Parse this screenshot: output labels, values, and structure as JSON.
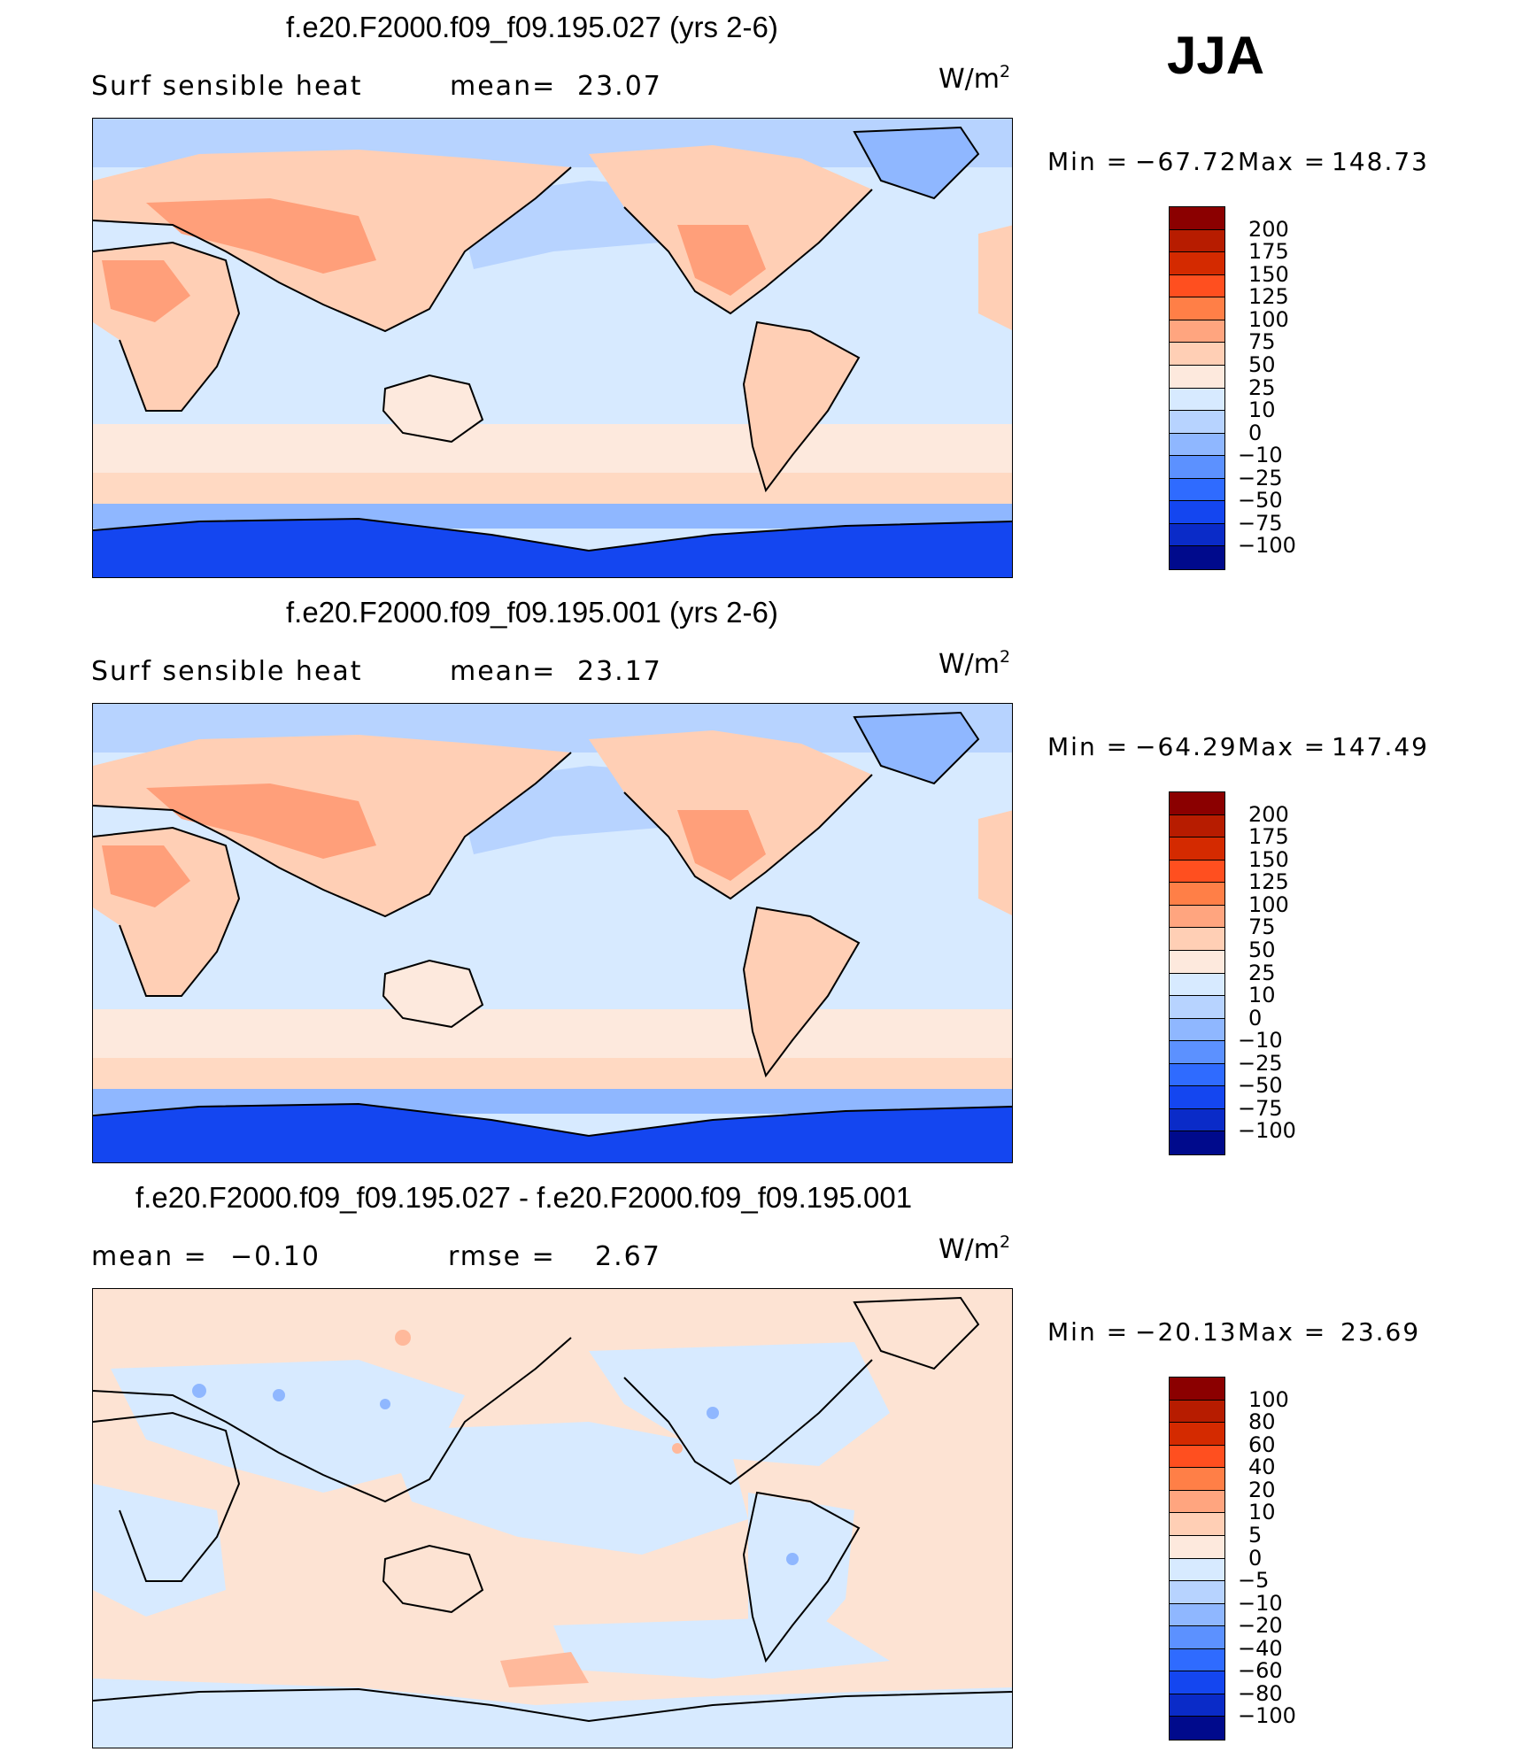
{
  "season": "JJA",
  "units": {
    "base": "W/m",
    "exp": "2"
  },
  "panels": [
    {
      "title": "f.e20.F2000.f09_f09.195.027 (yrs 2-6)",
      "variable": "Surf  sensible  heat",
      "stat1_label": "mean=",
      "stat1_value": "23.07",
      "stat2_label": "",
      "stat2_value": "",
      "min_label": "Min  =",
      "min_value": "−67.72",
      "max_label": "Max  =",
      "max_value": "148.73",
      "levels": [
        "200",
        "175",
        "150",
        "125",
        "100",
        "75",
        "50",
        "25",
        "10",
        "0",
        "−10",
        "−25",
        "−50",
        "−75",
        "−100"
      ],
      "colors": [
        "#8b0000",
        "#b71c00",
        "#d42a00",
        "#ff4f1f",
        "#ff7f47",
        "#ffa57f",
        "#ffcfb5",
        "#fde9dd",
        "#d7eaff",
        "#b7d3ff",
        "#8fb7ff",
        "#5c91ff",
        "#2f6bff",
        "#1446f0",
        "#0a2bc8",
        "#000a8c"
      ]
    },
    {
      "title": "f.e20.F2000.f09_f09.195.001 (yrs 2-6)",
      "variable": "Surf  sensible  heat",
      "stat1_label": "mean=",
      "stat1_value": "23.17",
      "stat2_label": "",
      "stat2_value": "",
      "min_label": "Min  =",
      "min_value": "−64.29",
      "max_label": "Max  =",
      "max_value": "147.49",
      "levels": [
        "200",
        "175",
        "150",
        "125",
        "100",
        "75",
        "50",
        "25",
        "10",
        "0",
        "−10",
        "−25",
        "−50",
        "−75",
        "−100"
      ],
      "colors": [
        "#8b0000",
        "#b71c00",
        "#d42a00",
        "#ff4f1f",
        "#ff7f47",
        "#ffa57f",
        "#ffcfb5",
        "#fde9dd",
        "#d7eaff",
        "#b7d3ff",
        "#8fb7ff",
        "#5c91ff",
        "#2f6bff",
        "#1446f0",
        "#0a2bc8",
        "#000a8c"
      ]
    },
    {
      "title": "f.e20.F2000.f09_f09.195.027 - f.e20.F2000.f09_f09.195.001",
      "variable": "",
      "stat1_label": "mean  =",
      "stat1_value": "−0.10",
      "stat2_label": "rmse  =",
      "stat2_value": "2.67",
      "min_label": "Min  =",
      "min_value": "−20.13",
      "max_label": "Max  =",
      "max_value": "23.69",
      "levels": [
        "100",
        "80",
        "60",
        "40",
        "20",
        "10",
        "5",
        "0",
        "−5",
        "−10",
        "−20",
        "−40",
        "−60",
        "−80",
        "−100"
      ],
      "colors": [
        "#8b0000",
        "#b71c00",
        "#d42a00",
        "#ff4f1f",
        "#ff7f47",
        "#ffa57f",
        "#ffcfb5",
        "#fde9dd",
        "#d7eaff",
        "#b7d3ff",
        "#8fb7ff",
        "#5c91ff",
        "#2f6bff",
        "#1446f0",
        "#0a2bc8",
        "#000a8c"
      ]
    }
  ],
  "palette": {
    "land_warm": "#ffcfb5",
    "land_hot": "#ff9f7a",
    "ocean_light": "#d7eaff",
    "ocean_mid": "#b7d3ff",
    "arctic": "#8fb7ff",
    "antarctic": "#1446f0",
    "diff_pos": "#fde3d3",
    "diff_neg": "#d7eaff"
  }
}
